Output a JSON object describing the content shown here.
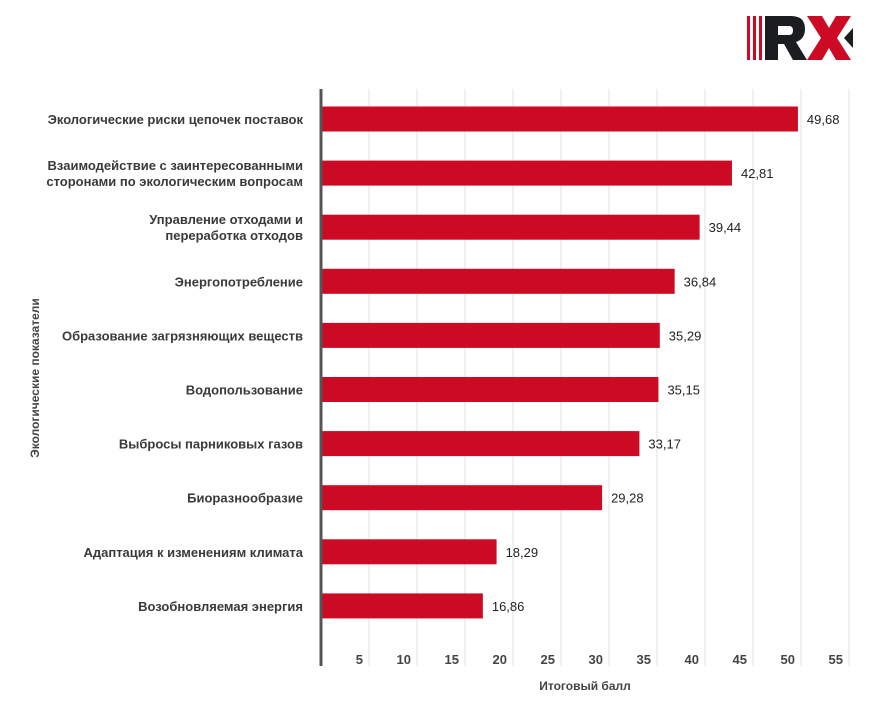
{
  "logo": {
    "text": "RX",
    "colors": {
      "red": "#cc0a24",
      "dark": "#1b1d21"
    }
  },
  "chart_data": {
    "type": "bar",
    "orientation": "horizontal",
    "title": "",
    "xlabel": "Итоговый балл",
    "ylabel": "Экологические показатели",
    "xlim": [
      0,
      55
    ],
    "xticks": [
      5,
      10,
      15,
      20,
      25,
      30,
      35,
      40,
      45,
      50,
      55
    ],
    "grid": true,
    "bar_color": "#cc0a24",
    "categories": [
      [
        "Экологические риски цепочек поставок"
      ],
      [
        "Взаимодействие с заинтересованными",
        "сторонами по экологическим вопросам"
      ],
      [
        "Управление отходами и",
        "переработка отходов"
      ],
      [
        "Энергопотребление"
      ],
      [
        "Образование загрязняющих веществ"
      ],
      [
        "Водопользование"
      ],
      [
        "Выбросы парниковых газов"
      ],
      [
        "Биоразнообразие"
      ],
      [
        "Адаптация к изменениям климата"
      ],
      [
        "Возобновляемая энергия"
      ]
    ],
    "values": [
      49.68,
      42.81,
      39.44,
      36.84,
      35.29,
      35.15,
      33.17,
      29.28,
      18.29,
      16.86
    ],
    "value_labels": [
      "49,68",
      "42,81",
      "39,44",
      "36,84",
      "35,29",
      "35,15",
      "33,17",
      "29,28",
      "18,29",
      "16,86"
    ]
  }
}
